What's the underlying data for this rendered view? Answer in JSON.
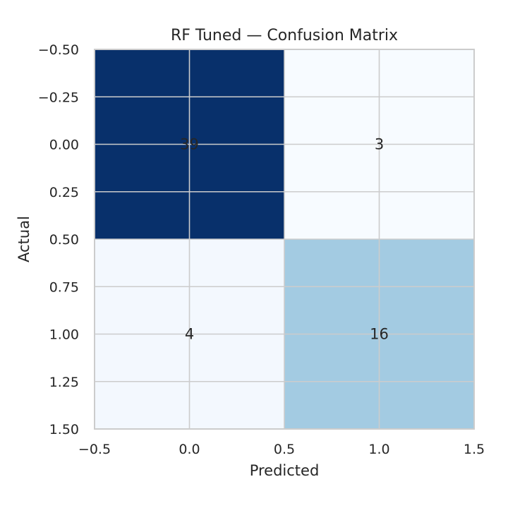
{
  "chart_data": {
    "type": "heatmap",
    "title": "RF Tuned — Confusion Matrix",
    "xlabel": "Predicted",
    "ylabel": "Actual",
    "xlim": [
      -0.5,
      1.5
    ],
    "ylim": [
      -0.5,
      1.5
    ],
    "y_inverted": true,
    "x_ticks": [
      -0.5,
      0.0,
      0.5,
      1.0,
      1.5
    ],
    "x_tick_labels": [
      "−0.5",
      "0.0",
      "0.5",
      "1.0",
      "1.5"
    ],
    "y_ticks": [
      -0.5,
      -0.25,
      0.0,
      0.25,
      0.5,
      0.75,
      1.0,
      1.25,
      1.5
    ],
    "y_tick_labels": [
      "−0.50",
      "−0.25",
      "0.00",
      "0.25",
      "0.50",
      "0.75",
      "1.00",
      "1.25",
      "1.50"
    ],
    "grid": true,
    "colormap": "Blues",
    "matrix": [
      [
        39,
        3
      ],
      [
        4,
        16
      ]
    ],
    "cells": [
      {
        "row": 0,
        "col": 0,
        "value": 39,
        "label": "39",
        "color": "#08306b"
      },
      {
        "row": 0,
        "col": 1,
        "value": 3,
        "label": "3",
        "color": "#f7fbff"
      },
      {
        "row": 1,
        "col": 0,
        "value": 4,
        "label": "4",
        "color": "#f3f8fe"
      },
      {
        "row": 1,
        "col": 1,
        "value": 16,
        "label": "16",
        "color": "#a3cbe2"
      }
    ]
  }
}
